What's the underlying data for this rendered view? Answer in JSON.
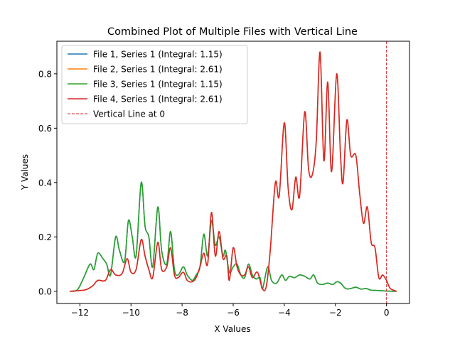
{
  "chart_data": {
    "type": "line",
    "title": "Combined Plot of Multiple Files with Vertical Line",
    "xlabel": "X Values",
    "ylabel": "Y Values",
    "xlim": [
      -12.9,
      0.9
    ],
    "ylim": [
      -0.045,
      0.92
    ],
    "grid": false,
    "legend_position": "top-left",
    "x_ticks": [
      -12,
      -10,
      -8,
      -6,
      -4,
      -2,
      0
    ],
    "x_tick_labels": [
      "−12",
      "−10",
      "−8",
      "−6",
      "−4",
      "−2",
      "0"
    ],
    "y_ticks": [
      0.0,
      0.2,
      0.4,
      0.6,
      0.8
    ],
    "y_tick_labels": [
      "0.0",
      "0.2",
      "0.4",
      "0.6",
      "0.8"
    ],
    "vertical_line": {
      "x": 0,
      "label": "Vertical Line at 0",
      "color": "#d62728",
      "style": "dashed"
    },
    "series": [
      {
        "name": "File 1, Series 1 (Integral: 1.15)",
        "color": "#1f77b4",
        "points": [
          [
            -12.4,
            0.0
          ],
          [
            -12.1,
            0.005
          ],
          [
            -11.85,
            0.05
          ],
          [
            -11.6,
            0.1
          ],
          [
            -11.45,
            0.08
          ],
          [
            -11.3,
            0.14
          ],
          [
            -11.1,
            0.12
          ],
          [
            -10.95,
            0.1
          ],
          [
            -10.8,
            0.06
          ],
          [
            -10.6,
            0.2
          ],
          [
            -10.45,
            0.15
          ],
          [
            -10.25,
            0.11
          ],
          [
            -10.1,
            0.26
          ],
          [
            -9.95,
            0.2
          ],
          [
            -9.8,
            0.13
          ],
          [
            -9.6,
            0.4
          ],
          [
            -9.45,
            0.24
          ],
          [
            -9.3,
            0.2
          ],
          [
            -9.15,
            0.09
          ],
          [
            -8.95,
            0.31
          ],
          [
            -8.8,
            0.15
          ],
          [
            -8.6,
            0.1
          ],
          [
            -8.45,
            0.22
          ],
          [
            -8.3,
            0.08
          ],
          [
            -8.15,
            0.06
          ],
          [
            -7.95,
            0.09
          ],
          [
            -7.8,
            0.06
          ],
          [
            -7.6,
            0.04
          ],
          [
            -7.45,
            0.06
          ],
          [
            -7.3,
            0.09
          ],
          [
            -7.15,
            0.21
          ],
          [
            -7.0,
            0.13
          ],
          [
            -6.85,
            0.26
          ],
          [
            -6.7,
            0.17
          ],
          [
            -6.55,
            0.2
          ],
          [
            -6.4,
            0.13
          ],
          [
            -6.3,
            0.15
          ],
          [
            -6.15,
            0.07
          ],
          [
            -6.0,
            0.09
          ],
          [
            -5.85,
            0.1
          ],
          [
            -5.7,
            0.06
          ],
          [
            -5.55,
            0.05
          ],
          [
            -5.4,
            0.1
          ],
          [
            -5.25,
            0.06
          ],
          [
            -5.1,
            0.045
          ],
          [
            -4.95,
            0.05
          ],
          [
            -4.85,
            0.01
          ],
          [
            -4.65,
            0.09
          ],
          [
            -4.5,
            0.04
          ],
          [
            -4.3,
            0.03
          ],
          [
            -4.1,
            0.06
          ],
          [
            -3.95,
            0.04
          ],
          [
            -3.8,
            0.055
          ],
          [
            -3.6,
            0.05
          ],
          [
            -3.4,
            0.06
          ],
          [
            -3.2,
            0.055
          ],
          [
            -3.0,
            0.045
          ],
          [
            -2.85,
            0.06
          ],
          [
            -2.7,
            0.03
          ],
          [
            -2.5,
            0.025
          ],
          [
            -2.3,
            0.03
          ],
          [
            -2.1,
            0.025
          ],
          [
            -1.95,
            0.035
          ],
          [
            -1.8,
            0.03
          ],
          [
            -1.6,
            0.01
          ],
          [
            -1.4,
            0.01
          ],
          [
            -1.2,
            0.015
          ],
          [
            -1.0,
            0.008
          ],
          [
            -0.8,
            0.01
          ],
          [
            -0.6,
            0.004
          ],
          [
            -0.4,
            0.003
          ],
          [
            -0.2,
            0.002
          ],
          [
            0.0,
            0.001
          ],
          [
            0.2,
            0.0
          ],
          [
            0.4,
            0.0
          ]
        ]
      },
      {
        "name": "File 2, Series 1 (Integral: 2.61)",
        "color": "#ff7f0e",
        "points": [
          [
            -12.4,
            0.0
          ],
          [
            -11.8,
            0.005
          ],
          [
            -11.5,
            0.02
          ],
          [
            -11.3,
            0.04
          ],
          [
            -11.0,
            0.04
          ],
          [
            -10.8,
            0.08
          ],
          [
            -10.6,
            0.06
          ],
          [
            -10.35,
            0.065
          ],
          [
            -10.15,
            0.12
          ],
          [
            -10.0,
            0.07
          ],
          [
            -9.8,
            0.08
          ],
          [
            -9.6,
            0.19
          ],
          [
            -9.45,
            0.13
          ],
          [
            -9.3,
            0.08
          ],
          [
            -9.15,
            0.05
          ],
          [
            -8.95,
            0.18
          ],
          [
            -8.8,
            0.08
          ],
          [
            -8.6,
            0.09
          ],
          [
            -8.45,
            0.16
          ],
          [
            -8.3,
            0.06
          ],
          [
            -8.15,
            0.05
          ],
          [
            -7.95,
            0.07
          ],
          [
            -7.8,
            0.04
          ],
          [
            -7.6,
            0.035
          ],
          [
            -7.45,
            0.05
          ],
          [
            -7.3,
            0.09
          ],
          [
            -7.15,
            0.14
          ],
          [
            -7.0,
            0.1
          ],
          [
            -6.85,
            0.29
          ],
          [
            -6.7,
            0.13
          ],
          [
            -6.55,
            0.22
          ],
          [
            -6.4,
            0.12
          ],
          [
            -6.25,
            0.13
          ],
          [
            -6.15,
            0.04
          ],
          [
            -6.0,
            0.16
          ],
          [
            -5.85,
            0.09
          ],
          [
            -5.7,
            0.06
          ],
          [
            -5.55,
            0.06
          ],
          [
            -5.4,
            0.09
          ],
          [
            -5.25,
            0.05
          ],
          [
            -5.05,
            0.07
          ],
          [
            -4.85,
            0.008
          ],
          [
            -4.7,
            0.02
          ],
          [
            -4.55,
            0.15
          ],
          [
            -4.35,
            0.4
          ],
          [
            -4.2,
            0.35
          ],
          [
            -4.0,
            0.62
          ],
          [
            -3.85,
            0.38
          ],
          [
            -3.7,
            0.3
          ],
          [
            -3.55,
            0.42
          ],
          [
            -3.4,
            0.35
          ],
          [
            -3.2,
            0.66
          ],
          [
            -3.05,
            0.45
          ],
          [
            -2.9,
            0.43
          ],
          [
            -2.75,
            0.55
          ],
          [
            -2.6,
            0.88
          ],
          [
            -2.45,
            0.48
          ],
          [
            -2.3,
            0.77
          ],
          [
            -2.15,
            0.44
          ],
          [
            -1.95,
            0.8
          ],
          [
            -1.8,
            0.5
          ],
          [
            -1.7,
            0.4
          ],
          [
            -1.55,
            0.63
          ],
          [
            -1.4,
            0.5
          ],
          [
            -1.2,
            0.5
          ],
          [
            -1.05,
            0.36
          ],
          [
            -0.9,
            0.25
          ],
          [
            -0.75,
            0.31
          ],
          [
            -0.6,
            0.18
          ],
          [
            -0.45,
            0.16
          ],
          [
            -0.3,
            0.05
          ],
          [
            -0.15,
            0.06
          ],
          [
            0.0,
            0.04
          ],
          [
            0.15,
            0.01
          ],
          [
            0.4,
            0.0
          ]
        ]
      },
      {
        "name": "File 3, Series 1 (Integral: 1.15)",
        "color": "#2ca02c",
        "points": [
          [
            -12.4,
            0.0
          ],
          [
            -12.1,
            0.005
          ],
          [
            -11.85,
            0.05
          ],
          [
            -11.6,
            0.1
          ],
          [
            -11.45,
            0.08
          ],
          [
            -11.3,
            0.14
          ],
          [
            -11.1,
            0.12
          ],
          [
            -10.95,
            0.1
          ],
          [
            -10.8,
            0.06
          ],
          [
            -10.6,
            0.2
          ],
          [
            -10.45,
            0.15
          ],
          [
            -10.25,
            0.11
          ],
          [
            -10.1,
            0.26
          ],
          [
            -9.95,
            0.2
          ],
          [
            -9.8,
            0.13
          ],
          [
            -9.6,
            0.4
          ],
          [
            -9.45,
            0.24
          ],
          [
            -9.3,
            0.2
          ],
          [
            -9.15,
            0.09
          ],
          [
            -8.95,
            0.31
          ],
          [
            -8.8,
            0.15
          ],
          [
            -8.6,
            0.1
          ],
          [
            -8.45,
            0.22
          ],
          [
            -8.3,
            0.08
          ],
          [
            -8.15,
            0.06
          ],
          [
            -7.95,
            0.09
          ],
          [
            -7.8,
            0.06
          ],
          [
            -7.6,
            0.04
          ],
          [
            -7.45,
            0.06
          ],
          [
            -7.3,
            0.09
          ],
          [
            -7.15,
            0.21
          ],
          [
            -7.0,
            0.13
          ],
          [
            -6.85,
            0.26
          ],
          [
            -6.7,
            0.17
          ],
          [
            -6.55,
            0.2
          ],
          [
            -6.4,
            0.13
          ],
          [
            -6.3,
            0.15
          ],
          [
            -6.15,
            0.07
          ],
          [
            -6.0,
            0.09
          ],
          [
            -5.85,
            0.1
          ],
          [
            -5.7,
            0.06
          ],
          [
            -5.55,
            0.05
          ],
          [
            -5.4,
            0.1
          ],
          [
            -5.25,
            0.06
          ],
          [
            -5.1,
            0.045
          ],
          [
            -4.95,
            0.05
          ],
          [
            -4.85,
            0.01
          ],
          [
            -4.65,
            0.09
          ],
          [
            -4.5,
            0.04
          ],
          [
            -4.3,
            0.03
          ],
          [
            -4.1,
            0.06
          ],
          [
            -3.95,
            0.04
          ],
          [
            -3.8,
            0.055
          ],
          [
            -3.6,
            0.05
          ],
          [
            -3.4,
            0.06
          ],
          [
            -3.2,
            0.055
          ],
          [
            -3.0,
            0.045
          ],
          [
            -2.85,
            0.06
          ],
          [
            -2.7,
            0.03
          ],
          [
            -2.5,
            0.025
          ],
          [
            -2.3,
            0.03
          ],
          [
            -2.1,
            0.025
          ],
          [
            -1.95,
            0.035
          ],
          [
            -1.8,
            0.03
          ],
          [
            -1.6,
            0.01
          ],
          [
            -1.4,
            0.01
          ],
          [
            -1.2,
            0.015
          ],
          [
            -1.0,
            0.008
          ],
          [
            -0.8,
            0.01
          ],
          [
            -0.6,
            0.004
          ],
          [
            -0.4,
            0.003
          ],
          [
            -0.2,
            0.002
          ],
          [
            0.0,
            0.001
          ],
          [
            0.2,
            0.0
          ],
          [
            0.4,
            0.0
          ]
        ]
      },
      {
        "name": "File 4, Series 1 (Integral: 2.61)",
        "color": "#d62728",
        "points": [
          [
            -12.4,
            0.0
          ],
          [
            -11.8,
            0.005
          ],
          [
            -11.5,
            0.02
          ],
          [
            -11.3,
            0.04
          ],
          [
            -11.0,
            0.04
          ],
          [
            -10.8,
            0.08
          ],
          [
            -10.6,
            0.06
          ],
          [
            -10.35,
            0.065
          ],
          [
            -10.15,
            0.12
          ],
          [
            -10.0,
            0.07
          ],
          [
            -9.8,
            0.08
          ],
          [
            -9.6,
            0.19
          ],
          [
            -9.45,
            0.13
          ],
          [
            -9.3,
            0.08
          ],
          [
            -9.15,
            0.05
          ],
          [
            -8.95,
            0.18
          ],
          [
            -8.8,
            0.08
          ],
          [
            -8.6,
            0.09
          ],
          [
            -8.45,
            0.16
          ],
          [
            -8.3,
            0.06
          ],
          [
            -8.15,
            0.05
          ],
          [
            -7.95,
            0.07
          ],
          [
            -7.8,
            0.04
          ],
          [
            -7.6,
            0.035
          ],
          [
            -7.45,
            0.05
          ],
          [
            -7.3,
            0.09
          ],
          [
            -7.15,
            0.14
          ],
          [
            -7.0,
            0.1
          ],
          [
            -6.85,
            0.29
          ],
          [
            -6.7,
            0.13
          ],
          [
            -6.55,
            0.22
          ],
          [
            -6.4,
            0.12
          ],
          [
            -6.25,
            0.13
          ],
          [
            -6.15,
            0.04
          ],
          [
            -6.0,
            0.16
          ],
          [
            -5.85,
            0.09
          ],
          [
            -5.7,
            0.06
          ],
          [
            -5.55,
            0.06
          ],
          [
            -5.4,
            0.09
          ],
          [
            -5.25,
            0.05
          ],
          [
            -5.05,
            0.07
          ],
          [
            -4.85,
            0.008
          ],
          [
            -4.7,
            0.02
          ],
          [
            -4.55,
            0.15
          ],
          [
            -4.35,
            0.4
          ],
          [
            -4.2,
            0.35
          ],
          [
            -4.0,
            0.62
          ],
          [
            -3.85,
            0.38
          ],
          [
            -3.7,
            0.3
          ],
          [
            -3.55,
            0.42
          ],
          [
            -3.4,
            0.35
          ],
          [
            -3.2,
            0.66
          ],
          [
            -3.05,
            0.45
          ],
          [
            -2.9,
            0.43
          ],
          [
            -2.75,
            0.55
          ],
          [
            -2.6,
            0.88
          ],
          [
            -2.45,
            0.48
          ],
          [
            -2.3,
            0.77
          ],
          [
            -2.15,
            0.44
          ],
          [
            -1.95,
            0.8
          ],
          [
            -1.8,
            0.5
          ],
          [
            -1.7,
            0.4
          ],
          [
            -1.55,
            0.63
          ],
          [
            -1.4,
            0.5
          ],
          [
            -1.2,
            0.5
          ],
          [
            -1.05,
            0.36
          ],
          [
            -0.9,
            0.25
          ],
          [
            -0.75,
            0.31
          ],
          [
            -0.6,
            0.18
          ],
          [
            -0.45,
            0.16
          ],
          [
            -0.3,
            0.05
          ],
          [
            -0.15,
            0.06
          ],
          [
            0.0,
            0.04
          ],
          [
            0.15,
            0.01
          ],
          [
            0.4,
            0.0
          ]
        ]
      }
    ]
  }
}
